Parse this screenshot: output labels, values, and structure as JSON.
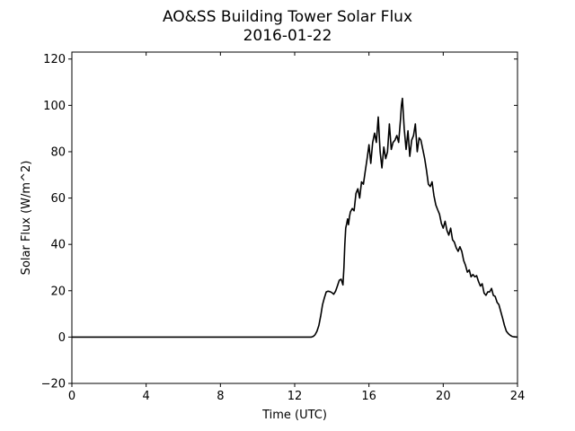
{
  "chart_data": {
    "type": "line",
    "title": "AO&SS Building Tower Solar Flux",
    "subtitle": "2016-01-22",
    "xlabel": "Time (UTC)",
    "ylabel": "Solar Flux (W/m^2)",
    "xlim": [
      0,
      24
    ],
    "ylim": [
      -20,
      123
    ],
    "xticks": [
      0,
      4,
      8,
      12,
      16,
      20,
      24
    ],
    "yticks": [
      -20,
      0,
      20,
      40,
      60,
      80,
      100,
      120
    ],
    "grid": false,
    "line_color": "#000000",
    "series": [
      {
        "x": [
          0,
          12.9,
          13.0,
          13.1,
          13.2,
          13.3,
          13.4,
          13.5,
          13.6,
          13.7,
          13.8,
          13.9,
          14.0,
          14.1,
          14.2,
          14.3,
          14.4,
          14.5,
          14.6,
          14.65,
          14.7,
          14.75,
          14.8,
          14.85,
          14.9,
          14.95,
          15.0,
          15.1,
          15.2,
          15.3,
          15.4,
          15.5,
          15.6,
          15.7,
          15.8,
          15.9,
          16.0,
          16.1,
          16.2,
          16.3,
          16.4,
          16.5,
          16.6,
          16.7,
          16.8,
          16.9,
          17.0,
          17.1,
          17.2,
          17.3,
          17.4,
          17.5,
          17.6,
          17.7,
          17.75,
          17.8,
          17.9,
          18.0,
          18.1,
          18.2,
          18.3,
          18.4,
          18.5,
          18.6,
          18.7,
          18.8,
          18.9,
          19.0,
          19.1,
          19.2,
          19.3,
          19.4,
          19.5,
          19.6,
          19.7,
          19.8,
          19.9,
          20.0,
          20.1,
          20.2,
          20.3,
          20.4,
          20.5,
          20.6,
          20.7,
          20.8,
          20.9,
          21.0,
          21.1,
          21.2,
          21.3,
          21.4,
          21.5,
          21.6,
          21.7,
          21.8,
          21.9,
          22.0,
          22.1,
          22.2,
          22.3,
          22.4,
          22.5,
          22.6,
          22.7,
          22.8,
          22.9,
          23.0,
          23.1,
          23.2,
          23.3,
          23.4,
          23.5,
          23.6,
          23.7,
          23.8,
          24.0
        ],
        "y": [
          0,
          0,
          0.3,
          1,
          2.5,
          5,
          9,
          14,
          17,
          19.5,
          19.8,
          19.6,
          19.2,
          18.5,
          19.8,
          22,
          24.5,
          25,
          22.5,
          30,
          40,
          47,
          49,
          51,
          48.5,
          52,
          54,
          55.5,
          54.5,
          62,
          64,
          60,
          67,
          66,
          71.5,
          77,
          83,
          75,
          84,
          88,
          84,
          95,
          80,
          73,
          82,
          77,
          80,
          92,
          81,
          84,
          85,
          87,
          84,
          94,
          100,
          103,
          90,
          81,
          89,
          78,
          85,
          87,
          92,
          80,
          86,
          85,
          81,
          77,
          72,
          66,
          65,
          67,
          61,
          57,
          55,
          53,
          49,
          47,
          50,
          46,
          44,
          47,
          42,
          41,
          38.5,
          37,
          39,
          37,
          33,
          31,
          28,
          29,
          26,
          27,
          26,
          26.5,
          24,
          22,
          23,
          19,
          18,
          19.5,
          19.5,
          21,
          18,
          17.5,
          15,
          14,
          11,
          8,
          5,
          2.5,
          1.5,
          0.8,
          0.3,
          0.1,
          0
        ]
      }
    ]
  }
}
